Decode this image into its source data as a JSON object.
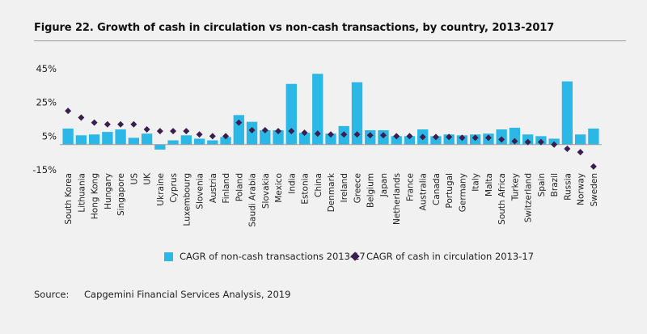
{
  "figure": {
    "title": "Figure 22. Growth of cash in circulation vs non-cash transactions, by country, 2013-2017"
  },
  "legend": {
    "bar_label": "CAGR of non-cash transactions 2013-17",
    "marker_label": "CAGR of cash in circulation 2013-17"
  },
  "source": {
    "label": "Source:",
    "text": "Capgemini Financial Services Analysis, 2019"
  },
  "colors": {
    "bar": "#2cb8e6",
    "marker": "#3b1e4f",
    "background": "#f1f1f1",
    "zero_line": "#9a9a9a"
  },
  "chart_data": {
    "type": "bar",
    "title": "",
    "xlabel": "",
    "ylabel": "",
    "ylim": [
      -15,
      45
    ],
    "yticks": [
      -15,
      5,
      25,
      45
    ],
    "ytick_labels": [
      "-15%",
      "5%",
      "25%",
      "45%"
    ],
    "grid": false,
    "legend_position": "bottom",
    "categories": [
      "South Korea",
      "Lithuania",
      "Hong Kong",
      "Hungary",
      "Singapore",
      "US",
      "UK",
      "Ukraine",
      "Cyprus",
      "Luxembourg",
      "Slovenia",
      "Austria",
      "Finland",
      "Poland",
      "Saudi Arabia",
      "Slovakia",
      "Mexico",
      "India",
      "Estonia",
      "China",
      "Denmark",
      "Ireland",
      "Greece",
      "Belgium",
      "Japan",
      "Netherlands",
      "France",
      "Australia",
      "Canada",
      "Portugal",
      "Germany",
      "Italy",
      "Malta",
      "South Africa",
      "Turkey",
      "Switzerland",
      "Spain",
      "Brazil",
      "Russia",
      "Norway",
      "Sweden"
    ],
    "series": [
      {
        "name": "CAGR of non-cash transactions 2013-17",
        "kind": "bar",
        "values": [
          9.5,
          5.5,
          6,
          7.5,
          9,
          4,
          6.5,
          -3,
          2.5,
          5.5,
          3.5,
          2.5,
          4.5,
          17.5,
          13.5,
          8.5,
          8.5,
          36,
          7,
          42,
          6.5,
          11,
          37,
          8.5,
          8.5,
          5,
          5,
          9,
          5,
          6,
          5.5,
          6,
          6.5,
          9,
          10,
          6,
          5,
          3.5,
          37.5,
          6,
          9.5
        ]
      },
      {
        "name": "CAGR of cash in circulation 2013-17",
        "kind": "marker",
        "values": [
          20,
          16,
          13,
          12,
          12,
          12,
          9,
          8,
          8,
          8,
          6,
          5,
          5,
          13,
          8.5,
          8.5,
          8,
          8,
          7,
          6.5,
          6,
          6,
          6,
          5.5,
          5.5,
          5,
          5,
          4.5,
          4.5,
          4.5,
          4,
          4,
          4,
          3,
          2,
          1.5,
          1.5,
          0,
          -2.5,
          -4.5,
          -13
        ]
      }
    ]
  }
}
